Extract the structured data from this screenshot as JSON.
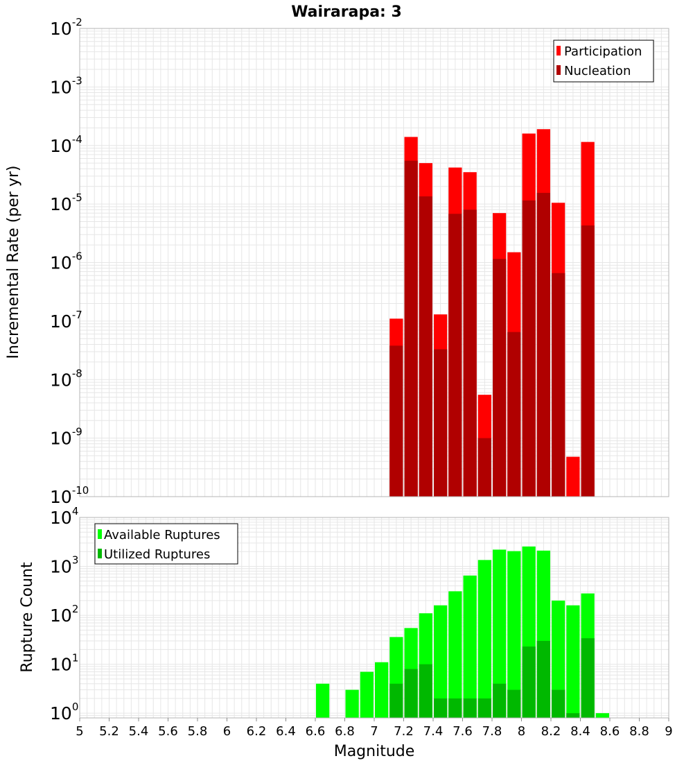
{
  "title": "Wairarapa: 3",
  "colors": {
    "participation": "#ff0000",
    "nucleation": "#b00000",
    "available": "#00ff00",
    "utilized": "#00b800",
    "grid": "#e6e6e6",
    "frame": "#b4b4b4"
  },
  "chart_data": [
    {
      "type": "bar",
      "ylabel": "Incremental Rate (per yr)",
      "yscale": "log",
      "ylim": [
        1e-10,
        0.01
      ],
      "xlim": [
        5,
        9
      ],
      "ytick_labels": [
        {
          "base": "10",
          "exp": "-10",
          "value": 1e-10
        },
        {
          "base": "10",
          "exp": "-9",
          "value": 1e-09
        },
        {
          "base": "10",
          "exp": "-8",
          "value": 1e-08
        },
        {
          "base": "10",
          "exp": "-7",
          "value": 1e-07
        },
        {
          "base": "10",
          "exp": "-6",
          "value": 1e-06
        },
        {
          "base": "10",
          "exp": "-5",
          "value": 1e-05
        },
        {
          "base": "10",
          "exp": "-4",
          "value": 0.0001
        },
        {
          "base": "10",
          "exp": "-3",
          "value": 0.001
        },
        {
          "base": "10",
          "exp": "-2",
          "value": 0.01
        }
      ],
      "legend_position": "top-right",
      "legend": [
        "Participation",
        "Nucleation"
      ],
      "x": [
        7.15,
        7.25,
        7.35,
        7.45,
        7.55,
        7.65,
        7.75,
        7.85,
        7.95,
        8.05,
        8.15,
        8.25,
        8.35,
        8.45
      ],
      "series": [
        {
          "name": "Participation",
          "values": [
            1.1e-07,
            0.00014,
            5e-05,
            1.3e-07,
            4.2e-05,
            3.5e-05,
            5.5e-09,
            7e-06,
            1.5e-06,
            0.00016,
            0.00019,
            1.05e-05,
            4.8e-10,
            0.000115
          ]
        },
        {
          "name": "Nucleation",
          "values": [
            3.8e-08,
            5.5e-05,
            1.35e-05,
            3.3e-08,
            6.8e-06,
            8e-06,
            1e-09,
            1.15e-06,
            6.5e-08,
            1.15e-05,
            1.55e-05,
            6.6e-07,
            null,
            4.3e-06
          ]
        }
      ]
    },
    {
      "type": "bar",
      "xlabel": "Magnitude",
      "ylabel": "Rupture Count",
      "yscale": "log",
      "ylim": [
        0.8,
        10000
      ],
      "xlim": [
        5,
        9
      ],
      "xticks": [
        "5",
        "5.2",
        "5.4",
        "5.6",
        "5.8",
        "6",
        "6.2",
        "6.4",
        "6.6",
        "6.8",
        "7",
        "7.2",
        "7.4",
        "7.6",
        "7.8",
        "8",
        "8.2",
        "8.4",
        "8.6",
        "8.8",
        "9"
      ],
      "ytick_labels": [
        {
          "base": "10",
          "exp": "0",
          "value": 1
        },
        {
          "base": "10",
          "exp": "1",
          "value": 10
        },
        {
          "base": "10",
          "exp": "2",
          "value": 100
        },
        {
          "base": "10",
          "exp": "3",
          "value": 1000
        },
        {
          "base": "10",
          "exp": "4",
          "value": 10000
        }
      ],
      "legend_position": "top-left",
      "legend": [
        "Available Ruptures",
        "Utilized Ruptures"
      ],
      "x": [
        6.65,
        6.85,
        6.95,
        7.05,
        7.15,
        7.25,
        7.35,
        7.45,
        7.55,
        7.65,
        7.75,
        7.85,
        7.95,
        8.05,
        8.15,
        8.25,
        8.35,
        8.45,
        8.55
      ],
      "series": [
        {
          "name": "Available Ruptures",
          "values": [
            4,
            3,
            7,
            11,
            36,
            55,
            110,
            160,
            310,
            650,
            1350,
            2200,
            2050,
            2550,
            2100,
            200,
            160,
            280,
            1
          ]
        },
        {
          "name": "Utilized Ruptures",
          "values": [
            null,
            null,
            null,
            null,
            4,
            8,
            10,
            2,
            2,
            2,
            2,
            4,
            3,
            23,
            30,
            3,
            1,
            34,
            null
          ]
        }
      ]
    }
  ]
}
